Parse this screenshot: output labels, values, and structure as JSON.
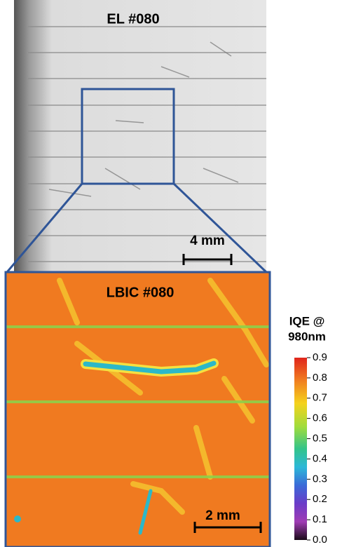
{
  "el_panel": {
    "label": "EL #080",
    "scale_bar": "4 mm"
  },
  "lbic_panel": {
    "label": "LBIC #080",
    "scale_bar": "2 mm"
  },
  "colorbar": {
    "title_lines": [
      "IQE @",
      "980nm"
    ],
    "ticks": [
      {
        "value": 0,
        "label": "0.0"
      },
      0.1,
      0.2,
      0.3,
      0.4,
      0.5,
      0.6,
      0.7,
      0.8,
      0.9
    ]
  }
}
